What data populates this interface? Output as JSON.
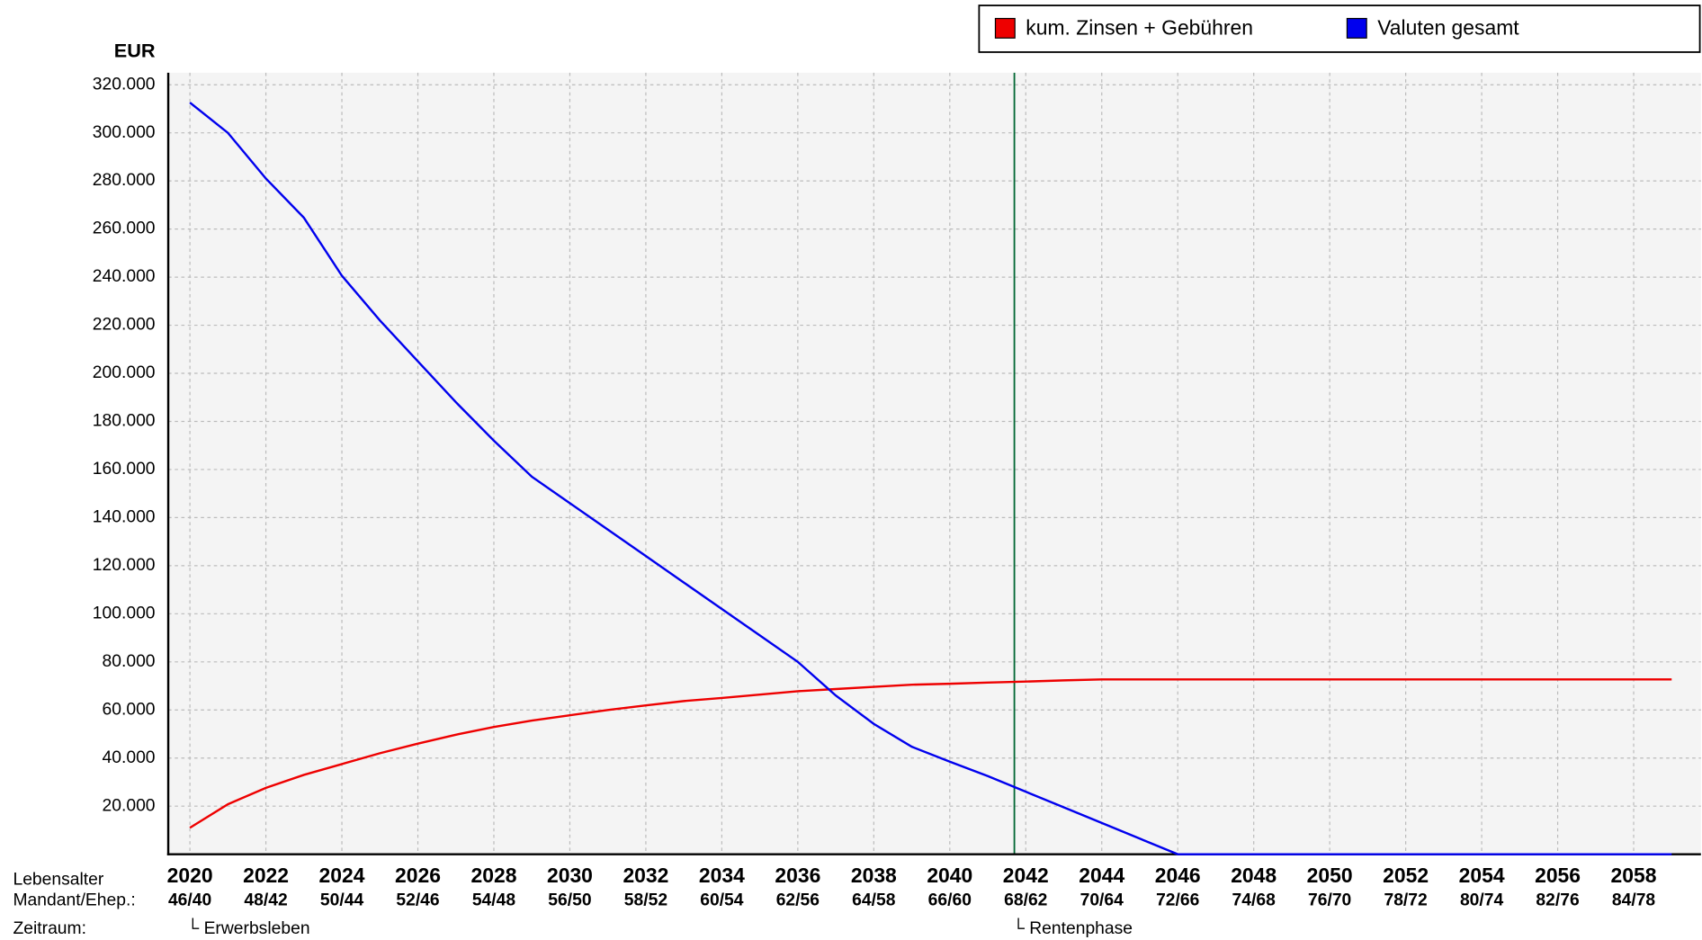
{
  "chart_data": {
    "type": "line",
    "y_unit": "EUR",
    "x": [
      2020,
      2021,
      2022,
      2023,
      2024,
      2025,
      2026,
      2027,
      2028,
      2029,
      2030,
      2031,
      2032,
      2033,
      2034,
      2035,
      2036,
      2037,
      2038,
      2039,
      2040,
      2041,
      2042,
      2043,
      2044,
      2045,
      2046,
      2047,
      2048,
      2049,
      2050,
      2051,
      2052,
      2053,
      2054,
      2055,
      2056,
      2057,
      2058,
      2059
    ],
    "series": [
      {
        "name": "kum. Zinsen + Gebühren",
        "color": "#ee0000",
        "values": [
          11000,
          20800,
          27600,
          33000,
          37500,
          42000,
          46000,
          49700,
          52900,
          55600,
          57800,
          60000,
          61900,
          63700,
          65000,
          66400,
          67800,
          68700,
          69600,
          70500,
          70900,
          71400,
          71800,
          72300,
          72700,
          72700,
          72700,
          72700,
          72700,
          72700,
          72700,
          72700,
          72700,
          72700,
          72700,
          72700,
          72700,
          72700,
          72700,
          72700
        ]
      },
      {
        "name": "Valuten gesamt",
        "color": "#0000ee",
        "values": [
          312600,
          300000,
          281000,
          264700,
          240600,
          222000,
          205000,
          188000,
          172000,
          157000,
          146000,
          135000,
          124000,
          113000,
          102000,
          91000,
          80000,
          66000,
          54200,
          44700,
          38500,
          32500,
          26000,
          19500,
          13000,
          6500,
          0,
          0,
          0,
          0,
          0,
          0,
          0,
          0,
          0,
          0,
          0,
          0,
          0,
          0
        ]
      }
    ],
    "xlim": [
      2019.43,
      2059.77
    ],
    "ylim": [
      0,
      325000
    ],
    "xticks": [
      2020,
      2022,
      2024,
      2026,
      2028,
      2030,
      2032,
      2034,
      2036,
      2038,
      2040,
      2042,
      2044,
      2046,
      2048,
      2050,
      2052,
      2054,
      2056,
      2058
    ],
    "age_labels": [
      "46/40",
      "48/42",
      "50/44",
      "52/46",
      "54/48",
      "56/50",
      "58/52",
      "60/54",
      "62/56",
      "64/58",
      "66/60",
      "68/62",
      "70/64",
      "72/66",
      "74/68",
      "76/70",
      "78/72",
      "80/74",
      "82/76",
      "84/78"
    ],
    "yticks": [
      {
        "value": 20000,
        "label": "20.000"
      },
      {
        "value": 40000,
        "label": "40.000"
      },
      {
        "value": 60000,
        "label": "60.000"
      },
      {
        "value": 80000,
        "label": "80.000"
      },
      {
        "value": 100000,
        "label": "100.000"
      },
      {
        "value": 120000,
        "label": "120.000"
      },
      {
        "value": 140000,
        "label": "140.000"
      },
      {
        "value": 160000,
        "label": "160.000"
      },
      {
        "value": 180000,
        "label": "180.000"
      },
      {
        "value": 200000,
        "label": "200.000"
      },
      {
        "value": 220000,
        "label": "220.000"
      },
      {
        "value": 240000,
        "label": "240.000"
      },
      {
        "value": 260000,
        "label": "260.000"
      },
      {
        "value": 280000,
        "label": "280.000"
      },
      {
        "value": 300000,
        "label": "300.000"
      },
      {
        "value": 320000,
        "label": "320.000"
      }
    ],
    "grid": true,
    "phase_line": 2041.7,
    "phase_colors": [
      "#cc0000",
      "#006633"
    ],
    "row_labels": [
      "Lebensalter",
      "Mandant/Ehep.:",
      "Zeitraum:"
    ],
    "phases": [
      "└ Erwerbsleben",
      "└ Rentenphase"
    ]
  }
}
